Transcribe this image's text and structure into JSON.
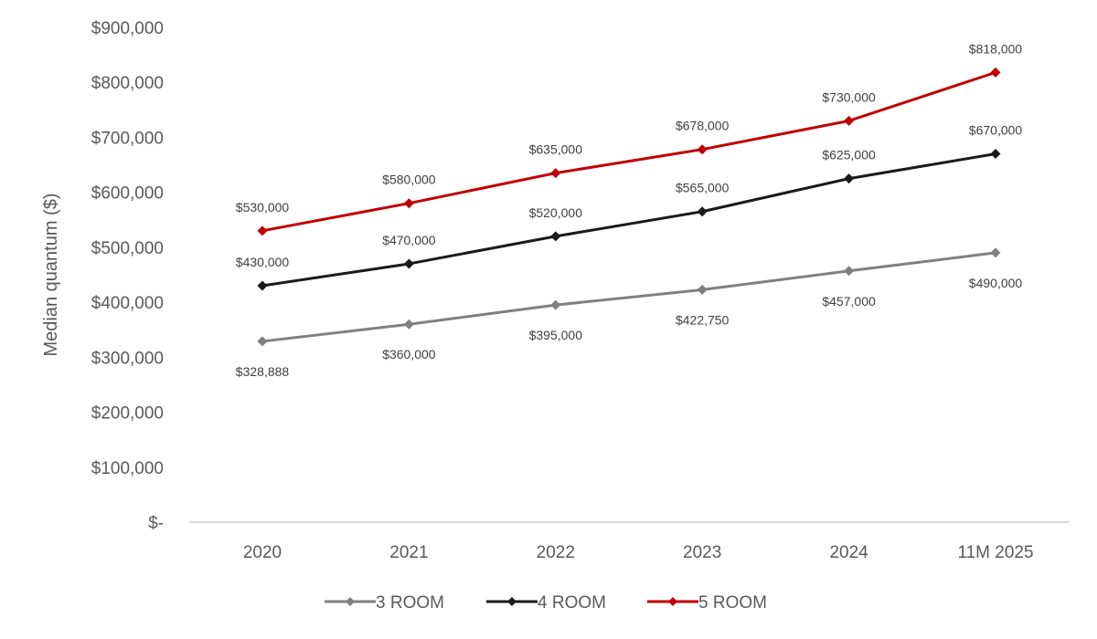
{
  "chart_data": {
    "type": "line",
    "title": "",
    "xlabel": "",
    "ylabel": "Median quantum ($)",
    "ylim": [
      0,
      900000
    ],
    "grid": false,
    "legend_position": "bottom",
    "categories": [
      "2020",
      "2021",
      "2022",
      "2023",
      "2024",
      "11M 2025"
    ],
    "y_ticks": [
      {
        "value": 0,
        "label": "$-"
      },
      {
        "value": 100000,
        "label": "$100,000"
      },
      {
        "value": 200000,
        "label": "$200,000"
      },
      {
        "value": 300000,
        "label": "$300,000"
      },
      {
        "value": 400000,
        "label": "$400,000"
      },
      {
        "value": 500000,
        "label": "$500,000"
      },
      {
        "value": 600000,
        "label": "$600,000"
      },
      {
        "value": 700000,
        "label": "$700,000"
      },
      {
        "value": 800000,
        "label": "$800,000"
      },
      {
        "value": 900000,
        "label": "$900,000"
      }
    ],
    "series": [
      {
        "name": "3 ROOM",
        "color": "#808080",
        "label_position": "below",
        "values": [
          328888,
          360000,
          395000,
          422750,
          457000,
          490000
        ],
        "labels": [
          "$328,888",
          "$360,000",
          "$395,000",
          "$422,750",
          "$457,000",
          "$490,000"
        ]
      },
      {
        "name": "4 ROOM",
        "color": "#1a1a1a",
        "label_position": "above",
        "values": [
          430000,
          470000,
          520000,
          565000,
          625000,
          670000
        ],
        "labels": [
          "$430,000",
          "$470,000",
          "$520,000",
          "$565,000",
          "$625,000",
          "$670,000"
        ]
      },
      {
        "name": "5 ROOM",
        "color": "#c00000",
        "label_position": "above",
        "values": [
          530000,
          580000,
          635000,
          678000,
          730000,
          818000
        ],
        "labels": [
          "$530,000",
          "$580,000",
          "$635,000",
          "$678,000",
          "$730,000",
          "$818,000"
        ]
      }
    ]
  }
}
